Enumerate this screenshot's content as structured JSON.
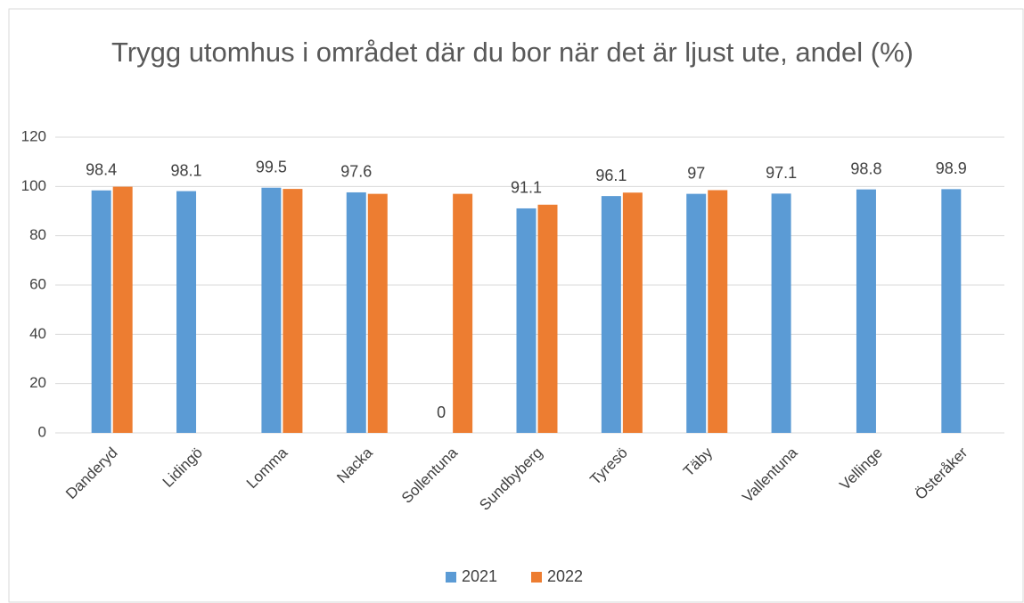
{
  "chart_data": {
    "type": "bar",
    "title": "Trygg utomhus i området där du bor när det är ljust ute, andel (%)",
    "categories": [
      "Danderyd",
      "Lidingö",
      "Lomma",
      "Nacka",
      "Sollentuna",
      "Sundbyberg",
      "Tyresö",
      "Täby",
      "Vallentuna",
      "Vellinge",
      "Österåker"
    ],
    "series": [
      {
        "name": "2021",
        "color": "#5b9bd5",
        "show_labels": true,
        "values": [
          98.4,
          98.1,
          99.5,
          97.6,
          0,
          91.1,
          96.1,
          97,
          97.1,
          98.8,
          98.9
        ]
      },
      {
        "name": "2022",
        "color": "#ed7d31",
        "show_labels": false,
        "values": [
          99.9,
          null,
          99,
          97,
          97,
          92.6,
          97.5,
          98.5,
          null,
          null,
          null
        ]
      }
    ],
    "ylim": [
      0,
      120
    ],
    "yticks": [
      0,
      20,
      40,
      60,
      80,
      100,
      120
    ],
    "grid": true,
    "legend": "bottom"
  }
}
